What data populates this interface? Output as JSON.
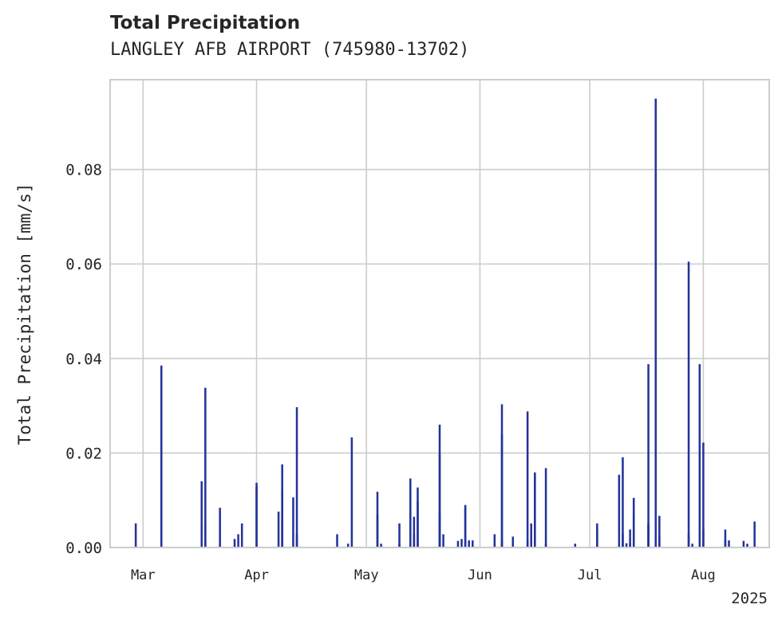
{
  "header": {
    "title": "Total Precipitation",
    "subtitle": "LANGLEY AFB AIRPORT (745980-13702)"
  },
  "chart_data": {
    "type": "bar",
    "title": "Total Precipitation",
    "subtitle": "LANGLEY AFB AIRPORT (745980-13702)",
    "xlabel": "",
    "ylabel": "Total Precipitation [mm/s]",
    "xlim": [
      "2025-02-20",
      "2025-08-19"
    ],
    "ylim": [
      0,
      0.099
    ],
    "yticks": [
      0.0,
      0.02,
      0.04,
      0.06,
      0.08
    ],
    "ytick_labels": [
      "0.00",
      "0.02",
      "0.04",
      "0.06",
      "0.08"
    ],
    "xticks": [
      "2025-03-01",
      "2025-04-01",
      "2025-05-01",
      "2025-06-01",
      "2025-07-01",
      "2025-08-01"
    ],
    "xtick_labels": [
      "Mar",
      "Apr",
      "May",
      "Jun",
      "Jul",
      "Aug"
    ],
    "x_offset_label": "2025",
    "grid": true,
    "color": "#23339a",
    "series": [
      {
        "x": [
          "2025-02-27",
          "2025-03-06",
          "2025-03-06",
          "2025-03-06",
          "2025-03-17",
          "2025-03-18",
          "2025-03-18",
          "2025-03-18",
          "2025-03-22",
          "2025-03-26",
          "2025-03-27",
          "2025-03-28",
          "2025-04-01",
          "2025-04-01",
          "2025-04-07",
          "2025-04-08",
          "2025-04-08",
          "2025-04-08",
          "2025-04-11",
          "2025-04-12",
          "2025-04-12",
          "2025-04-23",
          "2025-04-26",
          "2025-04-27",
          "2025-05-04",
          "2025-05-04",
          "2025-05-05",
          "2025-05-10",
          "2025-05-10",
          "2025-05-13",
          "2025-05-14",
          "2025-05-14",
          "2025-05-15",
          "2025-05-15",
          "2025-05-21",
          "2025-05-21",
          "2025-05-21",
          "2025-05-22",
          "2025-05-26",
          "2025-05-27",
          "2025-05-28",
          "2025-05-28",
          "2025-05-29",
          "2025-05-30",
          "2025-06-05",
          "2025-06-07",
          "2025-06-07",
          "2025-06-07",
          "2025-06-10",
          "2025-06-14",
          "2025-06-14",
          "2025-06-15",
          "2025-06-16",
          "2025-06-16",
          "2025-06-19",
          "2025-06-19",
          "2025-06-27",
          "2025-07-03",
          "2025-07-03",
          "2025-07-09",
          "2025-07-10",
          "2025-07-10",
          "2025-07-11",
          "2025-07-12",
          "2025-07-12",
          "2025-07-13",
          "2025-07-13",
          "2025-07-17",
          "2025-07-17",
          "2025-07-17",
          "2025-07-19",
          "2025-07-19",
          "2025-07-20",
          "2025-07-20",
          "2025-07-28",
          "2025-07-28",
          "2025-07-29",
          "2025-07-31",
          "2025-08-01",
          "2025-08-01",
          "2025-08-07",
          "2025-08-07",
          "2025-08-08",
          "2025-08-12",
          "2025-08-13",
          "2025-08-15"
        ],
        "values": [
          0.0051,
          0.0385,
          0.029,
          0.021,
          0.014,
          0.0338,
          0.0055,
          0.0015,
          0.0084,
          0.0018,
          0.0028,
          0.0051,
          0.0137,
          0.0128,
          0.0076,
          0.0176,
          0.0122,
          0.0062,
          0.0106,
          0.0297,
          0.0028,
          0.0028,
          0.0008,
          0.0233,
          0.0118,
          0.007,
          0.0008,
          0.0051,
          0.0008,
          0.0146,
          0.0065,
          0.0028,
          0.0098,
          0.0127,
          0.0071,
          0.026,
          0.0198,
          0.0028,
          0.0014,
          0.0018,
          0.0084,
          0.009,
          0.0015,
          0.0015,
          0.0028,
          0.0238,
          0.0303,
          0.0014,
          0.0023,
          0.0288,
          0.0015,
          0.0051,
          0.0159,
          0.0155,
          0.0008,
          0.0168,
          0.0008,
          0.0051,
          0.0038,
          0.0154,
          0.0028,
          0.0191,
          0.0009,
          0.0038,
          0.0009,
          0.0105,
          0.007,
          0.0051,
          0.0388,
          0.0051,
          0.095,
          0.0024,
          0.0067,
          0.0024,
          0.0605,
          0.0028,
          0.0008,
          0.0388,
          0.0222,
          0.0038,
          0.0015,
          0.0038,
          0.0015,
          0.0014,
          0.0008,
          0.0055
        ]
      }
    ]
  }
}
